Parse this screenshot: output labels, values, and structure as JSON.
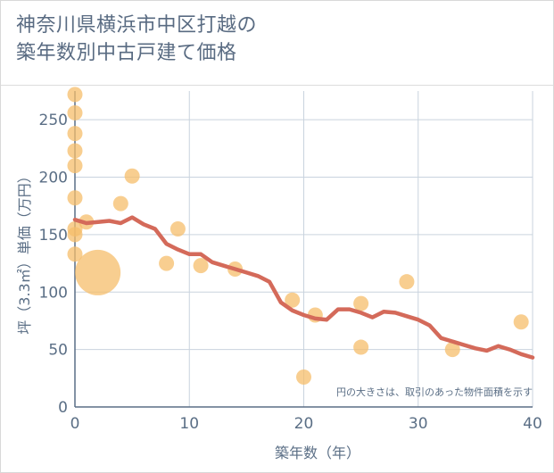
{
  "title_line1": "神奈川県横浜市中区打越の",
  "title_line2": "築年数別中古戸建て価格",
  "chart_data": {
    "type": "scatter",
    "xlabel": "築年数（年）",
    "ylabel": "坪（3.3㎡）単価（万円）",
    "xlim": [
      0,
      40
    ],
    "ylim": [
      0,
      275
    ],
    "xticks": [
      0,
      10,
      20,
      30,
      40
    ],
    "yticks": [
      0,
      50,
      100,
      150,
      200,
      250
    ],
    "grid": true,
    "note": "円の大きさは、取引のあった物件面積を示す",
    "bubbles": [
      {
        "x": 0,
        "y": 272,
        "size": 1
      },
      {
        "x": 0,
        "y": 256,
        "size": 1
      },
      {
        "x": 0,
        "y": 238,
        "size": 1
      },
      {
        "x": 0,
        "y": 223,
        "size": 1
      },
      {
        "x": 0,
        "y": 210,
        "size": 1
      },
      {
        "x": 0,
        "y": 182,
        "size": 1
      },
      {
        "x": 0,
        "y": 155,
        "size": 1
      },
      {
        "x": 0,
        "y": 150,
        "size": 1
      },
      {
        "x": 0,
        "y": 133,
        "size": 1
      },
      {
        "x": 1,
        "y": 161,
        "size": 1
      },
      {
        "x": 2,
        "y": 117,
        "size": 9
      },
      {
        "x": 4,
        "y": 177,
        "size": 1
      },
      {
        "x": 5,
        "y": 201,
        "size": 1
      },
      {
        "x": 8,
        "y": 125,
        "size": 1
      },
      {
        "x": 9,
        "y": 155,
        "size": 1
      },
      {
        "x": 11,
        "y": 123,
        "size": 1
      },
      {
        "x": 14,
        "y": 120,
        "size": 1
      },
      {
        "x": 19,
        "y": 93,
        "size": 1
      },
      {
        "x": 20,
        "y": 26,
        "size": 1
      },
      {
        "x": 21,
        "y": 80,
        "size": 1
      },
      {
        "x": 25,
        "y": 90,
        "size": 1
      },
      {
        "x": 25,
        "y": 52,
        "size": 1
      },
      {
        "x": 29,
        "y": 109,
        "size": 1
      },
      {
        "x": 33,
        "y": 50,
        "size": 1
      },
      {
        "x": 39,
        "y": 74,
        "size": 1
      }
    ],
    "trend": {
      "x": [
        0,
        1,
        2,
        3,
        4,
        5,
        6,
        7,
        8,
        9,
        10,
        11,
        12,
        13,
        14,
        15,
        16,
        17,
        18,
        19,
        20,
        21,
        22,
        23,
        24,
        25,
        26,
        27,
        28,
        29,
        30,
        31,
        32,
        33,
        34,
        35,
        36,
        37,
        38,
        39,
        40
      ],
      "y": [
        163,
        160,
        161,
        162,
        160,
        165,
        159,
        155,
        142,
        137,
        133,
        133,
        126,
        123,
        120,
        117,
        114,
        109,
        91,
        84,
        80,
        77,
        76,
        85,
        85,
        82,
        78,
        83,
        82,
        79,
        76,
        71,
        60,
        57,
        54,
        51,
        49,
        53,
        50,
        46,
        43
      ]
    },
    "colors": {
      "bubble": "#f5bd6b",
      "trend": "#d46a5a",
      "grid": "#c9d3de",
      "axis": "#5a6e85"
    }
  }
}
